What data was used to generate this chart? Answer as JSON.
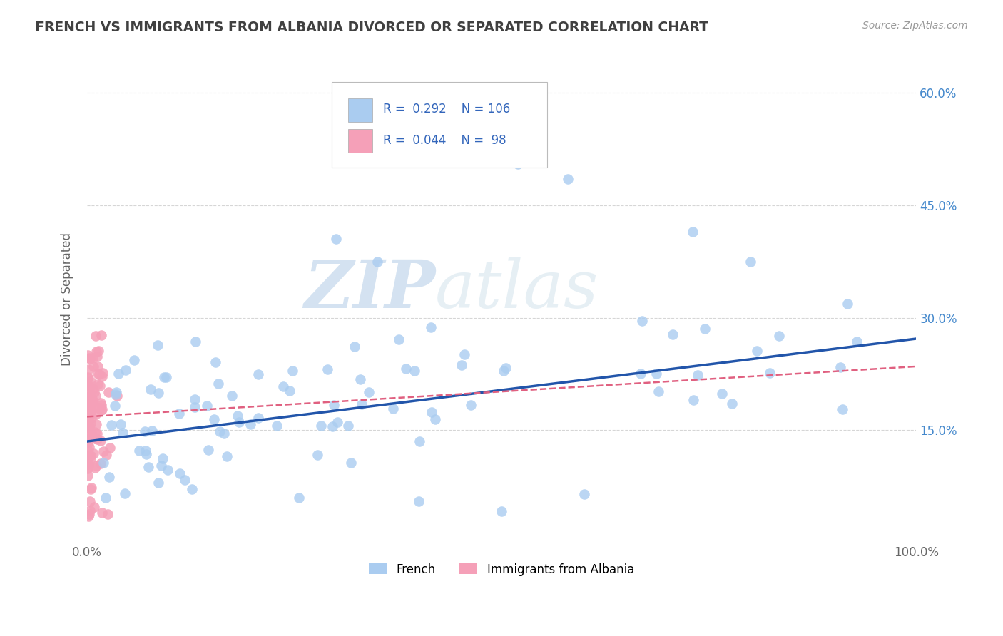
{
  "title": "FRENCH VS IMMIGRANTS FROM ALBANIA DIVORCED OR SEPARATED CORRELATION CHART",
  "source": "Source: ZipAtlas.com",
  "ylabel": "Divorced or Separated",
  "xlim": [
    0.0,
    1.0
  ],
  "ylim": [
    0.0,
    0.65
  ],
  "xticks": [
    0.0,
    0.2,
    0.4,
    0.6,
    0.8,
    1.0
  ],
  "xtick_labels": [
    "0.0%",
    "",
    "",
    "",
    "",
    "100.0%"
  ],
  "yticks": [
    0.15,
    0.3,
    0.45,
    0.6
  ],
  "right_ytick_labels": [
    "15.0%",
    "30.0%",
    "45.0%",
    "60.0%"
  ],
  "french_R": 0.292,
  "french_N": 106,
  "albania_R": 0.044,
  "albania_N": 98,
  "blue_color": "#aaccf0",
  "blue_dark": "#2255aa",
  "pink_color": "#f5a0b8",
  "pink_dark": "#e06080",
  "watermark_zip": "ZIP",
  "watermark_atlas": "atlas",
  "legend_label_french": "French",
  "legend_label_albania": "Immigrants from Albania",
  "background_color": "#ffffff",
  "grid_color": "#cccccc",
  "title_color": "#404040",
  "french_trend_x0": 0.0,
  "french_trend_y0": 0.135,
  "french_trend_x1": 1.0,
  "french_trend_y1": 0.272,
  "albania_trend_x0": 0.0,
  "albania_trend_y0": 0.168,
  "albania_trend_x1": 1.0,
  "albania_trend_y1": 0.235
}
